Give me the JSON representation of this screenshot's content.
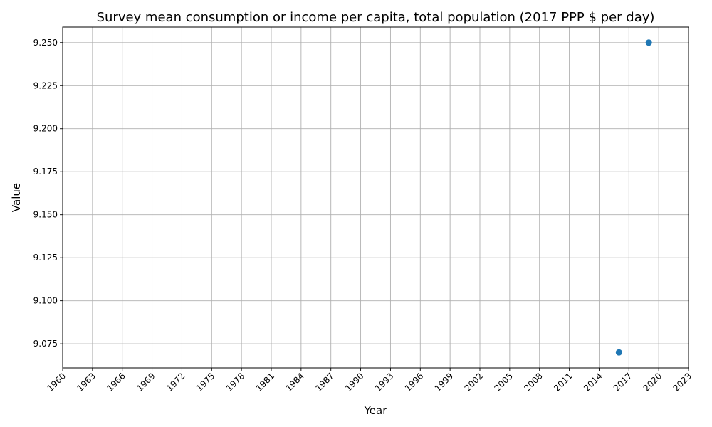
{
  "chart_data": {
    "type": "scatter",
    "title": "Survey mean consumption or income per capita, total population (2017 PPP $ per day)",
    "xlabel": "Year",
    "ylabel": "Value",
    "xlim": [
      1960,
      2023
    ],
    "ylim": [
      9.061,
      9.259
    ],
    "xticks": [
      1960,
      1963,
      1966,
      1969,
      1972,
      1975,
      1978,
      1981,
      1984,
      1987,
      1990,
      1993,
      1996,
      1999,
      2002,
      2005,
      2008,
      2011,
      2014,
      2017,
      2020,
      2023
    ],
    "yticks": [
      "9.075",
      "9.100",
      "9.125",
      "9.150",
      "9.175",
      "9.200",
      "9.225",
      "9.250"
    ],
    "grid": true,
    "series": [
      {
        "color": "#1f77b4",
        "points": [
          {
            "x": 2016,
            "y": 9.07
          },
          {
            "x": 2019,
            "y": 9.25
          }
        ]
      }
    ]
  }
}
